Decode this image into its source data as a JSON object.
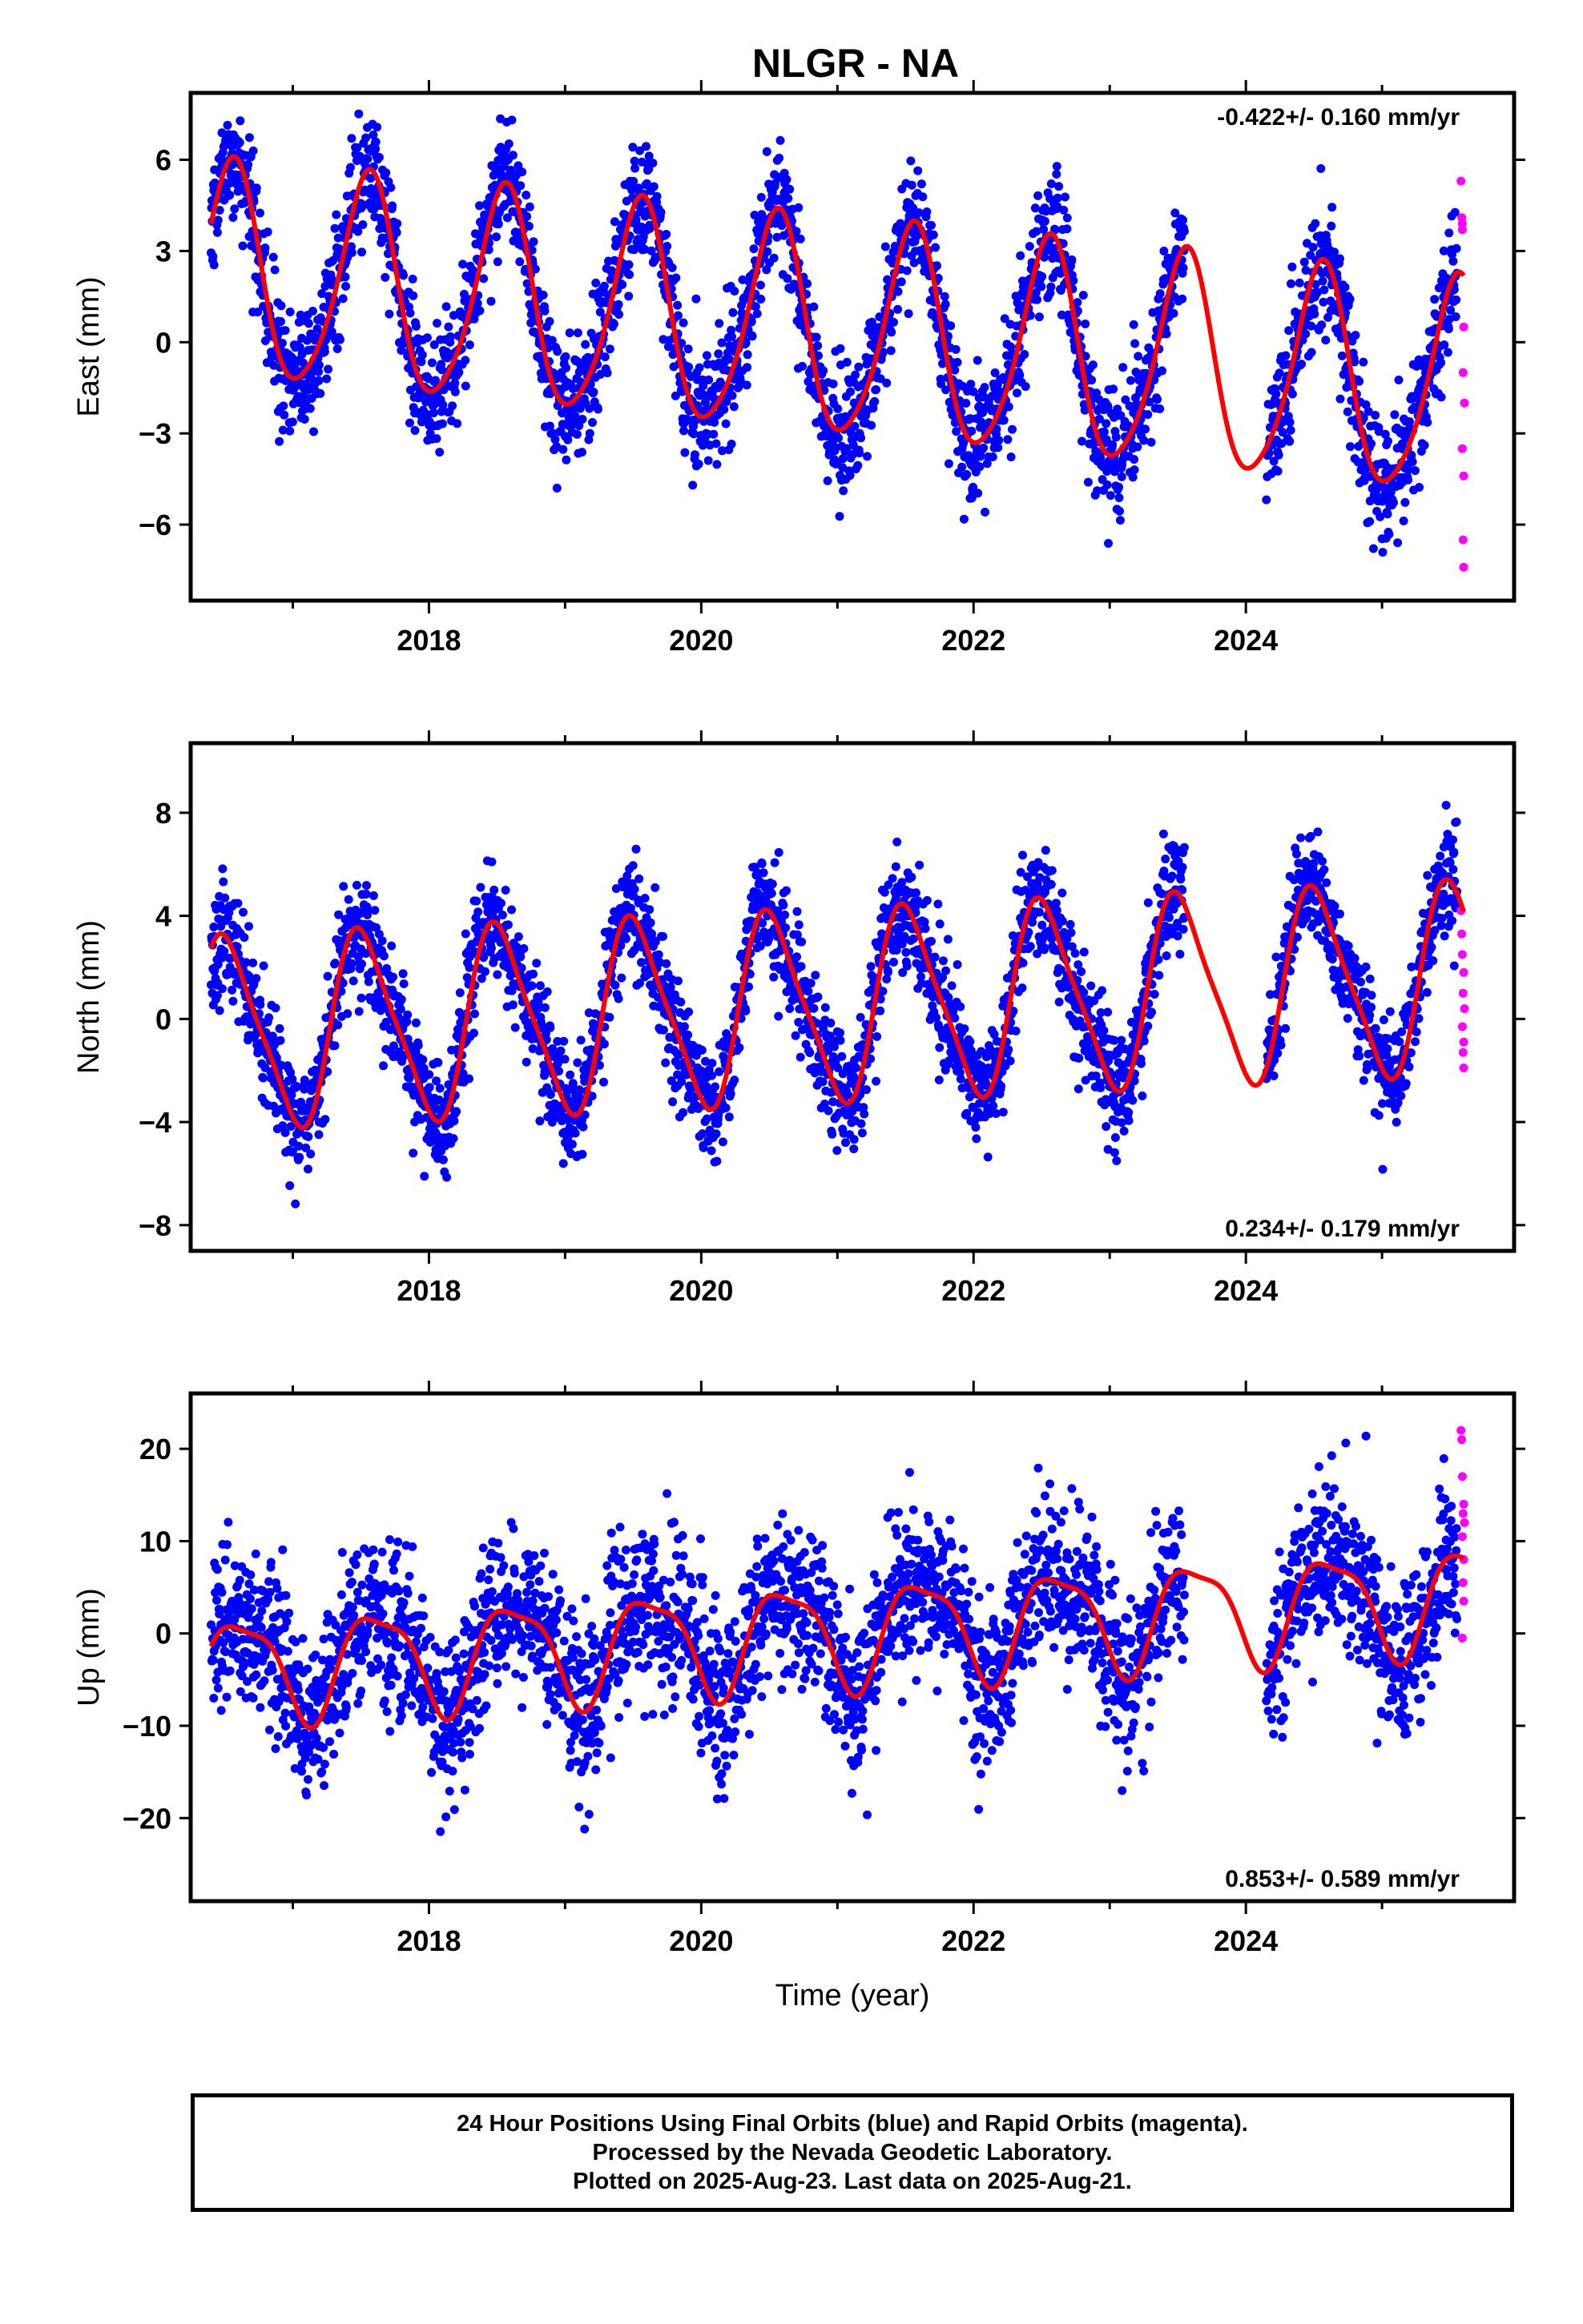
{
  "figure": {
    "title": "NLGR - NA",
    "footer": {
      "line1": "24 Hour Positions Using Final Orbits (blue) and Rapid Orbits (magenta).",
      "line2": "Processed by the Nevada Geodetic Laboratory.",
      "line3": "Plotted on 2025-Aug-23. Last data on 2025-Aug-21."
    }
  },
  "colors": {
    "final_orbits": "#0000ff",
    "rapid_orbits": "#ff00ff",
    "model_fit": "#ff0000",
    "axes": "#000000"
  },
  "chart_data": [
    {
      "type": "scatter",
      "ylabel": "East (mm)",
      "xlabel": "",
      "rate_text": "-0.422+/- 0.160 mm/yr",
      "rate_position": "top-right",
      "xlim": [
        2016.25,
        2025.97
      ],
      "ylim": [
        -8.5,
        8.2
      ],
      "xticks": [
        2018,
        2020,
        2022,
        2024
      ],
      "yticks": [
        -6,
        -3,
        0,
        3,
        6
      ],
      "ytick_labels": [
        "−6",
        "−3",
        "0",
        "3",
        "6"
      ],
      "grid": false,
      "model": {
        "offset": 0.3,
        "rate": -0.422,
        "t0": 2021.0,
        "annual_amp": 3.5,
        "annual_peak": 2016.55,
        "semi_amp": 0.5,
        "semi_peak": 2016.6,
        "noise_sd": 1.0
      },
      "final_range": [
        2016.4,
        2025.55
      ],
      "gaps": [
        [
          2023.55,
          2024.15
        ]
      ],
      "rapid": {
        "x": [
          2025.58,
          2025.585,
          2025.59,
          2025.6,
          2025.595,
          2025.605,
          2025.59,
          2025.6,
          2025.595,
          2025.6,
          2025.59
        ],
        "y": [
          5.3,
          4.1,
          3.7,
          0.5,
          -1.0,
          -2.0,
          -3.5,
          -4.4,
          -6.5,
          -7.4,
          3.9
        ]
      }
    },
    {
      "type": "scatter",
      "ylabel": "North (mm)",
      "xlabel": "",
      "rate_text": "0.234+/- 0.179 mm/yr",
      "rate_position": "bottom-right",
      "xlim": [
        2016.25,
        2025.97
      ],
      "ylim": [
        -9.0,
        10.7
      ],
      "xticks": [
        2018,
        2020,
        2022,
        2024
      ],
      "yticks": [
        -8,
        -4,
        0,
        4,
        8
      ],
      "ytick_labels": [
        "−8",
        "−4",
        "0",
        "4",
        "8"
      ],
      "grid": false,
      "model": {
        "offset": 0.5,
        "rate": 0.234,
        "t0": 2021.0,
        "annual_amp": 3.6,
        "annual_peak": 2016.52,
        "semi_amp": 0.7,
        "semi_peak": 2016.4,
        "noise_sd": 1.1
      },
      "final_range": [
        2016.4,
        2025.55
      ],
      "gaps": [
        [
          2023.55,
          2024.15
        ]
      ],
      "rapid": {
        "x": [
          2025.58,
          2025.585,
          2025.59,
          2025.6,
          2025.595,
          2025.605,
          2025.59,
          2025.6,
          2025.595,
          2025.6
        ],
        "y": [
          4.2,
          3.3,
          2.5,
          1.8,
          1.0,
          0.4,
          -0.3,
          -0.9,
          -1.3,
          -1.9
        ]
      }
    },
    {
      "type": "scatter",
      "ylabel": "Up (mm)",
      "xlabel": "Time (year)",
      "rate_text": "0.853+/- 0.589 mm/yr",
      "rate_position": "bottom-right",
      "xlim": [
        2016.25,
        2025.97
      ],
      "ylim": [
        -29,
        26
      ],
      "xticks": [
        2018,
        2020,
        2022,
        2024
      ],
      "yticks": [
        -20,
        -10,
        0,
        10,
        20
      ],
      "ytick_labels": [
        "−20",
        "−10",
        "0",
        "10",
        "20"
      ],
      "grid": false,
      "model": {
        "offset": 0.0,
        "rate": 0.853,
        "t0": 2021.0,
        "annual_amp": 5.5,
        "annual_peak": 2016.62,
        "semi_amp": 1.5,
        "semi_peak": 2016.4,
        "noise_sd": 4.3
      },
      "final_range": [
        2016.4,
        2025.55
      ],
      "gaps": [
        [
          2023.55,
          2024.15
        ]
      ],
      "rapid": {
        "x": [
          2025.58,
          2025.585,
          2025.59,
          2025.6,
          2025.595,
          2025.605,
          2025.59,
          2025.6,
          2025.595,
          2025.6,
          2025.59
        ],
        "y": [
          22.0,
          21.0,
          17.0,
          14.0,
          13.0,
          12.0,
          10.5,
          8.0,
          5.5,
          3.5,
          -0.5
        ]
      }
    }
  ]
}
